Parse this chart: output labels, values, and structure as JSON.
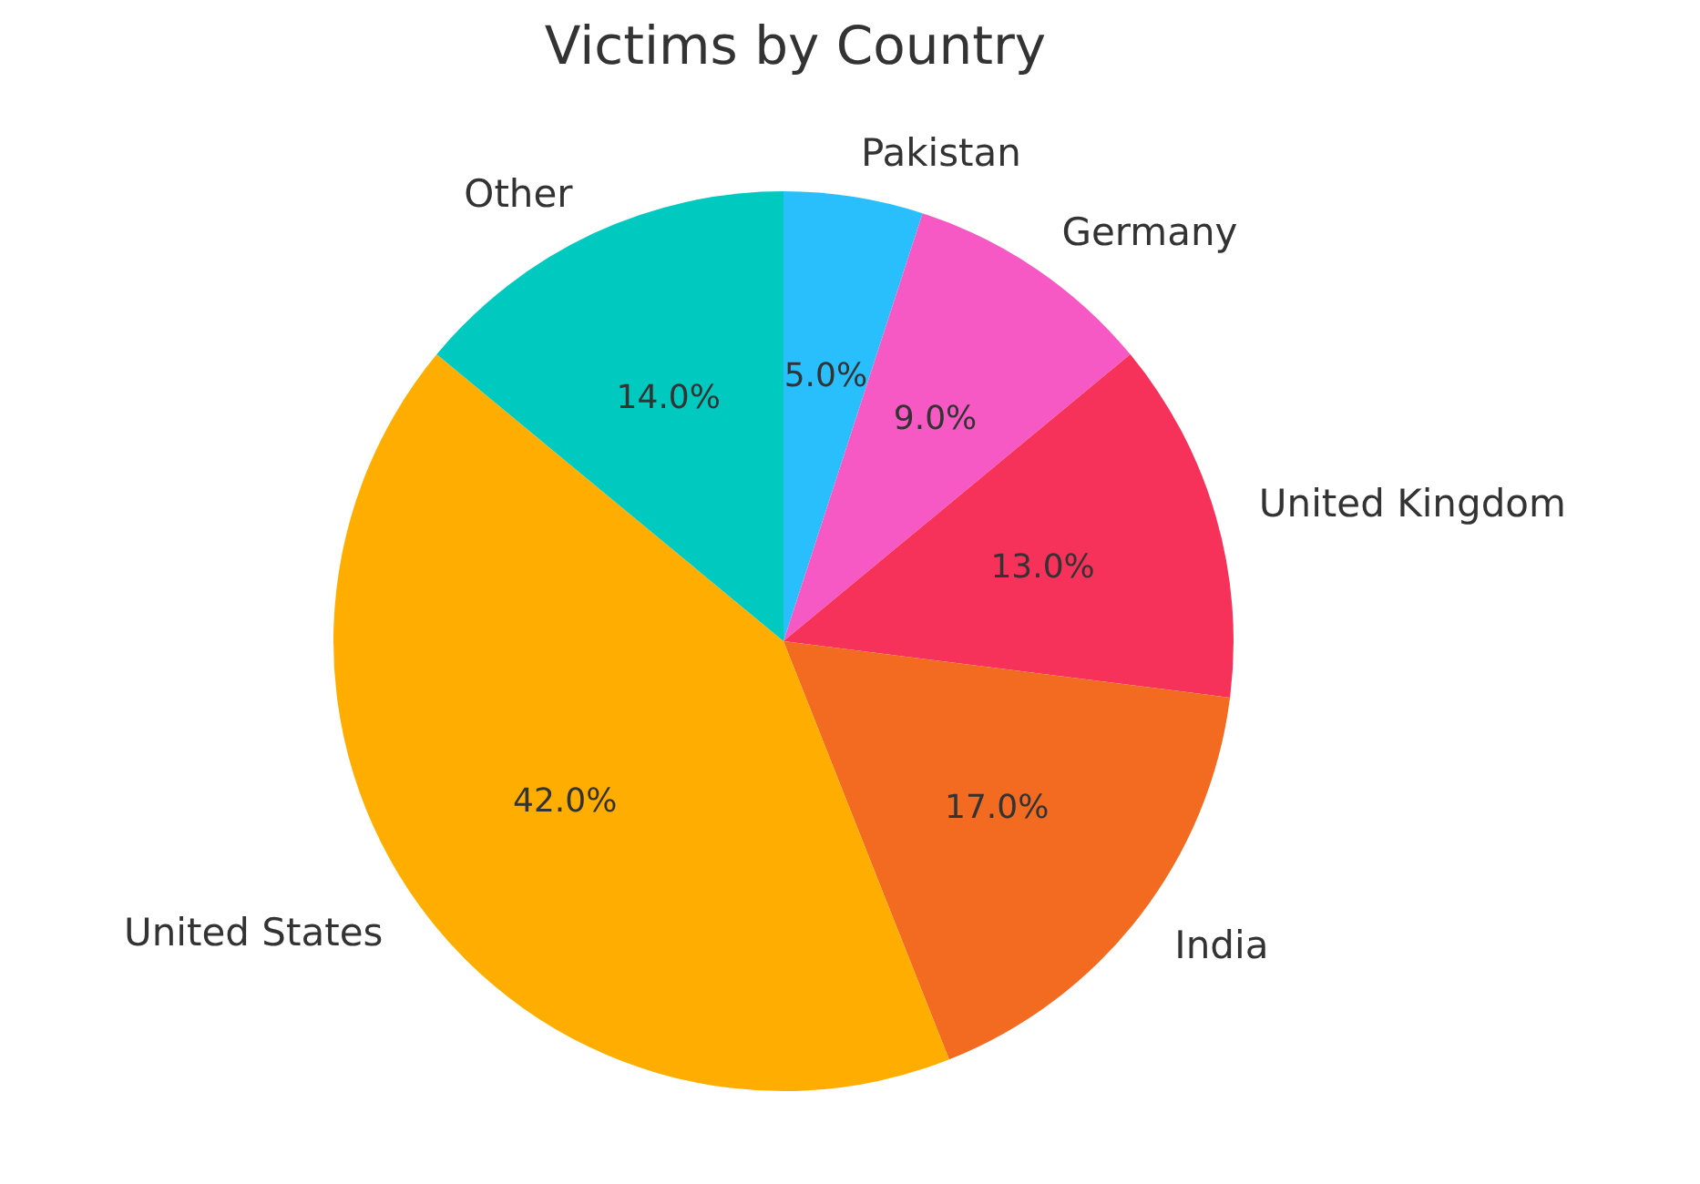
{
  "chart_data": {
    "type": "pie",
    "title": "Victims by Country",
    "categories": [
      "Pakistan",
      "Germany",
      "United Kingdom",
      "India",
      "United States",
      "Other"
    ],
    "values": [
      5,
      9,
      13,
      17,
      42,
      14
    ],
    "colors": [
      "#29bffd",
      "#f659c3",
      "#f6325a",
      "#f26b21",
      "#ffae00",
      "#00c9bf"
    ],
    "value_labels": [
      "5.0%",
      "9.0%",
      "13.0%",
      "17.0%",
      "42.0%",
      "14.0%"
    ]
  }
}
